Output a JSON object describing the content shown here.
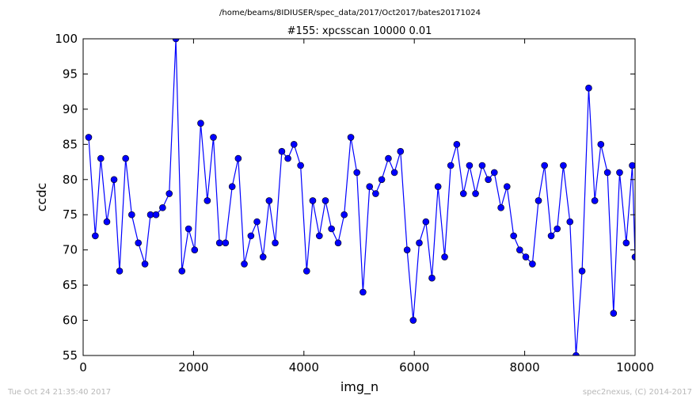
{
  "header": {
    "path": "/home/beams/8IDIUSER/spec_data/2017/Oct2017/bates20171024"
  },
  "footer": {
    "timestamp": "Tue Oct 24 21:35:40 2017",
    "credit": "spec2nexus, (C) 2014-2017"
  },
  "chart_data": {
    "type": "line",
    "title": "#155: xpcsscan 10000 0.01",
    "xlabel": "img_n",
    "ylabel": "ccdc",
    "xlim": [
      0,
      10000
    ],
    "ylim": [
      55,
      100
    ],
    "xticks": [
      0,
      2000,
      4000,
      6000,
      8000,
      10000
    ],
    "yticks": [
      55,
      60,
      65,
      70,
      75,
      80,
      85,
      90,
      95,
      100
    ],
    "grid": false,
    "marker": "circle",
    "line_color": "#0000ff",
    "marker_color": "#0000ff",
    "x": [
      100,
      220,
      320,
      430,
      560,
      660,
      770,
      880,
      1000,
      1120,
      1220,
      1320,
      1440,
      1560,
      1680,
      1790,
      1910,
      2020,
      2130,
      2250,
      2360,
      2470,
      2580,
      2700,
      2810,
      2920,
      3040,
      3150,
      3260,
      3370,
      3480,
      3600,
      3710,
      3820,
      3940,
      4050,
      4160,
      4280,
      4390,
      4500,
      4620,
      4730,
      4850,
      4960,
      5070,
      5190,
      5300,
      5410,
      5530,
      5640,
      5750,
      5870,
      5980,
      6090,
      6210,
      6320,
      6430,
      6550,
      6660,
      6770,
      6890,
      7000,
      7110,
      7230,
      7340,
      7450,
      7570,
      7680,
      7800,
      7910,
      8020,
      8140,
      8250,
      8360,
      8480,
      8590,
      8700,
      8820,
      8930,
      9040,
      9160,
      9270,
      9380,
      9500,
      9610,
      9720,
      9840,
      9950,
      10000
    ],
    "y": [
      86,
      72,
      83,
      74,
      80,
      67,
      83,
      75,
      71,
      68,
      75,
      75,
      76,
      78,
      100,
      67,
      73,
      70,
      88,
      77,
      86,
      71,
      71,
      79,
      83,
      68,
      72,
      74,
      69,
      77,
      71,
      84,
      83,
      85,
      82,
      67,
      77,
      72,
      77,
      73,
      71,
      75,
      86,
      81,
      64,
      79,
      78,
      80,
      83,
      81,
      84,
      70,
      60,
      71,
      74,
      66,
      79,
      69,
      82,
      85,
      78,
      82,
      78,
      82,
      80,
      81,
      76,
      79,
      72,
      70,
      69,
      68,
      77,
      82,
      72,
      73,
      82,
      74,
      55,
      67,
      93,
      77,
      85,
      81,
      61,
      81,
      71,
      82,
      69
    ]
  }
}
